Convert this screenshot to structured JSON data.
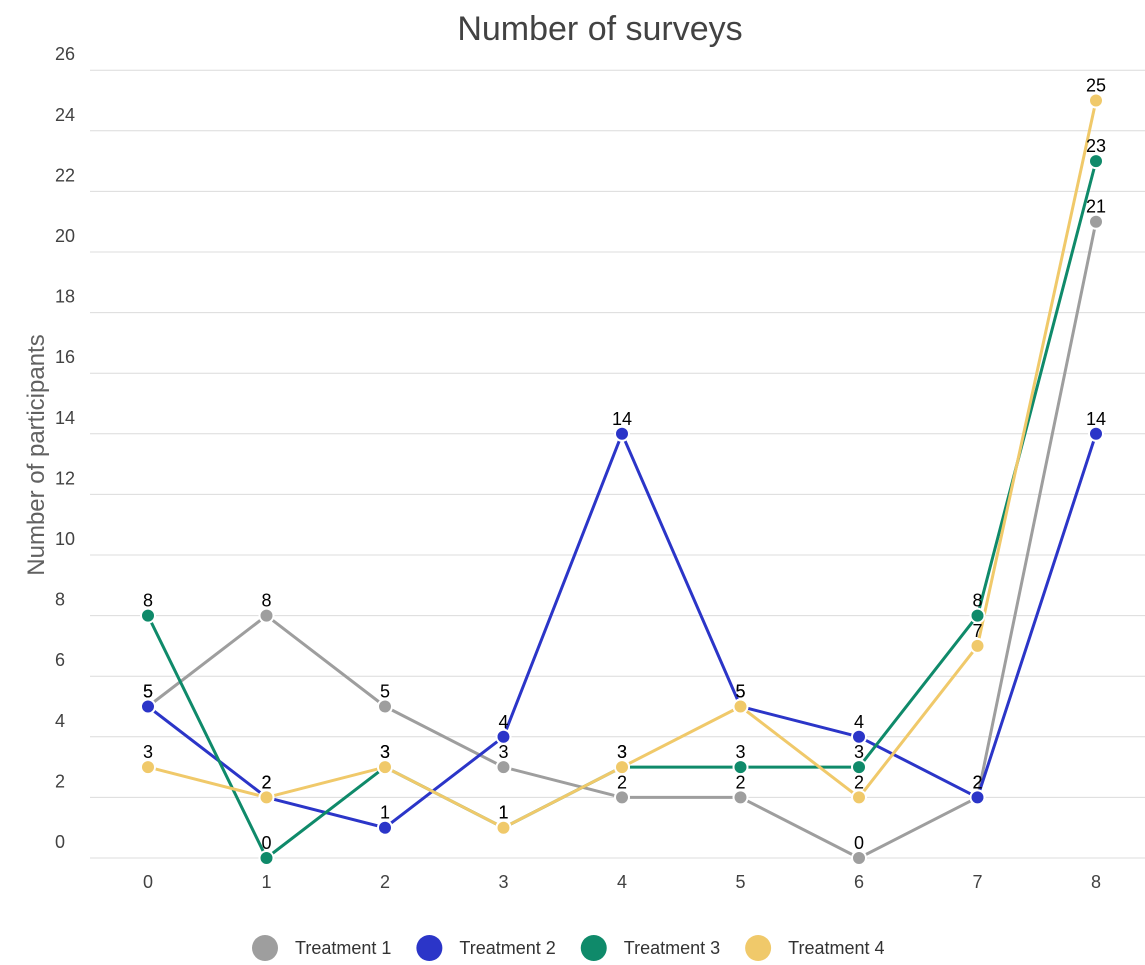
{
  "chart_data": {
    "type": "line",
    "title": "Number of surveys",
    "xlabel": "",
    "ylabel": "Number of participants",
    "x": [
      0,
      1,
      2,
      3,
      4,
      5,
      6,
      7,
      8
    ],
    "ylim": [
      0,
      26
    ],
    "yticks": [
      0,
      2,
      4,
      6,
      8,
      10,
      12,
      14,
      16,
      18,
      20,
      22,
      24,
      26
    ],
    "grid": true,
    "legend_position": "bottom",
    "series": [
      {
        "name": "Treatment 1",
        "color": "#9e9e9e",
        "values": [
          5,
          8,
          5,
          3,
          2,
          2,
          0,
          2,
          21
        ]
      },
      {
        "name": "Treatment 2",
        "color": "#2b35c8",
        "values": [
          5,
          2,
          1,
          4,
          14,
          5,
          4,
          2,
          14
        ]
      },
      {
        "name": "Treatment 3",
        "color": "#0f8a6a",
        "values": [
          8,
          0,
          3,
          1,
          3,
          3,
          3,
          8,
          23
        ]
      },
      {
        "name": "Treatment 4",
        "color": "#f0c96a",
        "values": [
          3,
          2,
          3,
          1,
          3,
          5,
          2,
          7,
          25
        ]
      }
    ]
  }
}
